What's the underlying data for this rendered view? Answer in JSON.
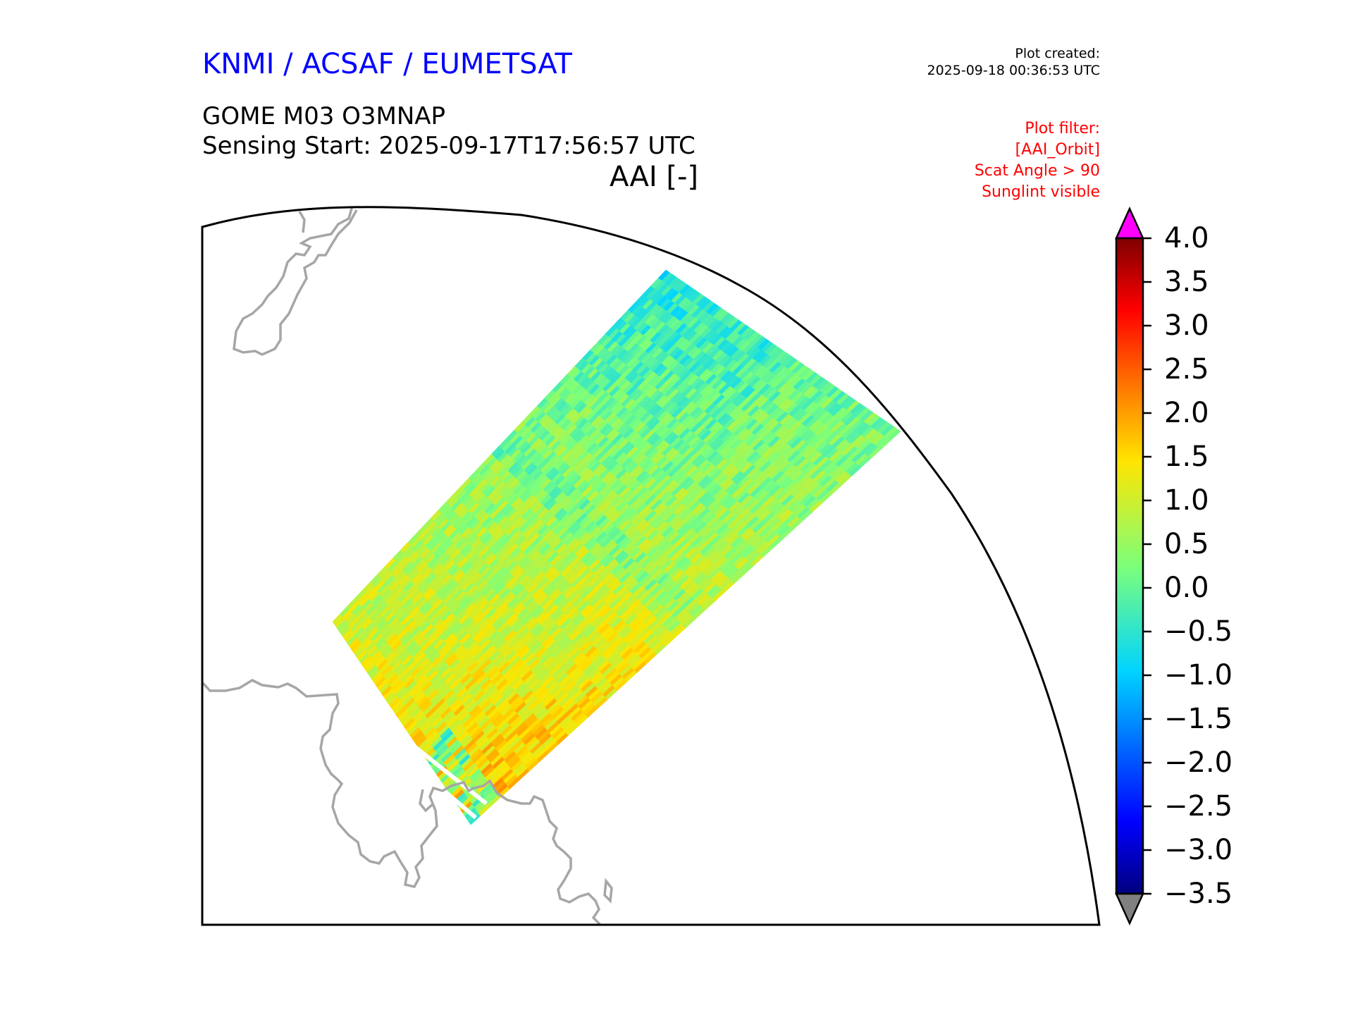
{
  "header": {
    "organization": "KNMI / ACSAF / EUMETSAT",
    "created_label": "Plot created:",
    "created_time": "2025-09-18 00:36:53 UTC",
    "product": "GOME M03 O3MNAP",
    "sensing_start": "Sensing Start: 2025-09-17T17:56:57 UTC",
    "variable": "AAI [-]"
  },
  "plot_filter": {
    "title": "Plot filter:",
    "lines": [
      "[AAI_Orbit]",
      "Scat Angle > 90",
      "Sunglint visible"
    ]
  },
  "colorbar": {
    "ticks": [
      "4.0",
      "3.5",
      "3.0",
      "2.5",
      "2.0",
      "1.5",
      "1.0",
      "0.5",
      "0.0",
      "−0.5",
      "−1.0",
      "−1.5",
      "−2.0",
      "−2.5",
      "−3.0",
      "−3.5"
    ],
    "min": -3.5,
    "max": 4.0,
    "over_color": "#ff00ff",
    "under_color": "#808080",
    "colormap": "jet"
  },
  "map": {
    "coastline_color": "#a6a6a6",
    "swath_mean_color": "#7fe88a"
  }
}
